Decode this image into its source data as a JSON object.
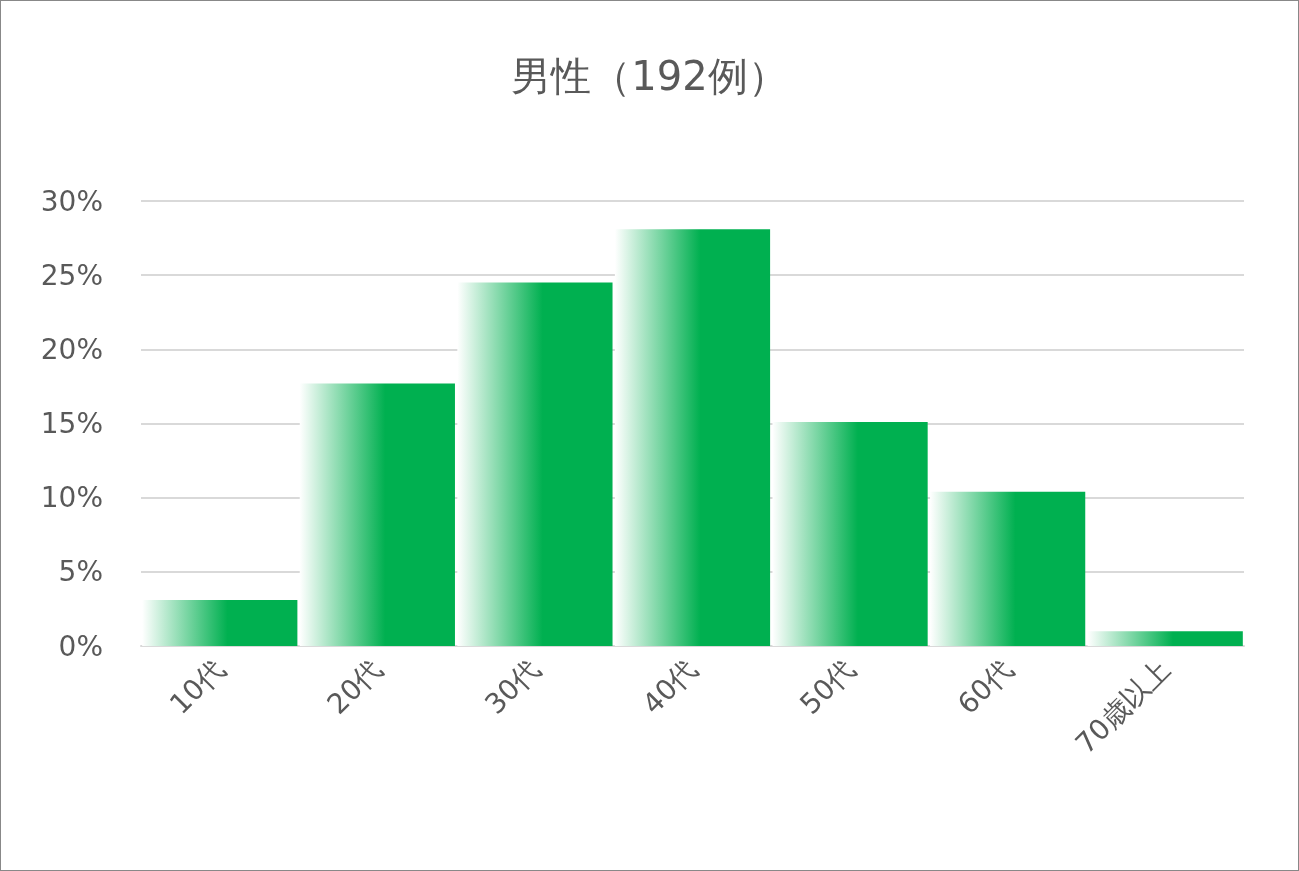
{
  "chart_data": {
    "type": "bar",
    "title": "男性（192例）",
    "categories": [
      "10代",
      "20代",
      "30代",
      "40代",
      "50代",
      "60代",
      "70歳以上"
    ],
    "values": [
      3.1,
      17.7,
      24.5,
      28.1,
      15.1,
      10.4,
      1.0
    ],
    "color": "#00b050",
    "ylim": [
      0,
      30
    ],
    "yticks": [
      {
        "value": 0,
        "label": "0%"
      },
      {
        "value": 5,
        "label": "5%"
      },
      {
        "value": 10,
        "label": "10%"
      },
      {
        "value": 15,
        "label": "15%"
      },
      {
        "value": 20,
        "label": "20%"
      },
      {
        "value": 25,
        "label": "25%"
      },
      {
        "value": 30,
        "label": "30%"
      }
    ],
    "grid": "y"
  }
}
